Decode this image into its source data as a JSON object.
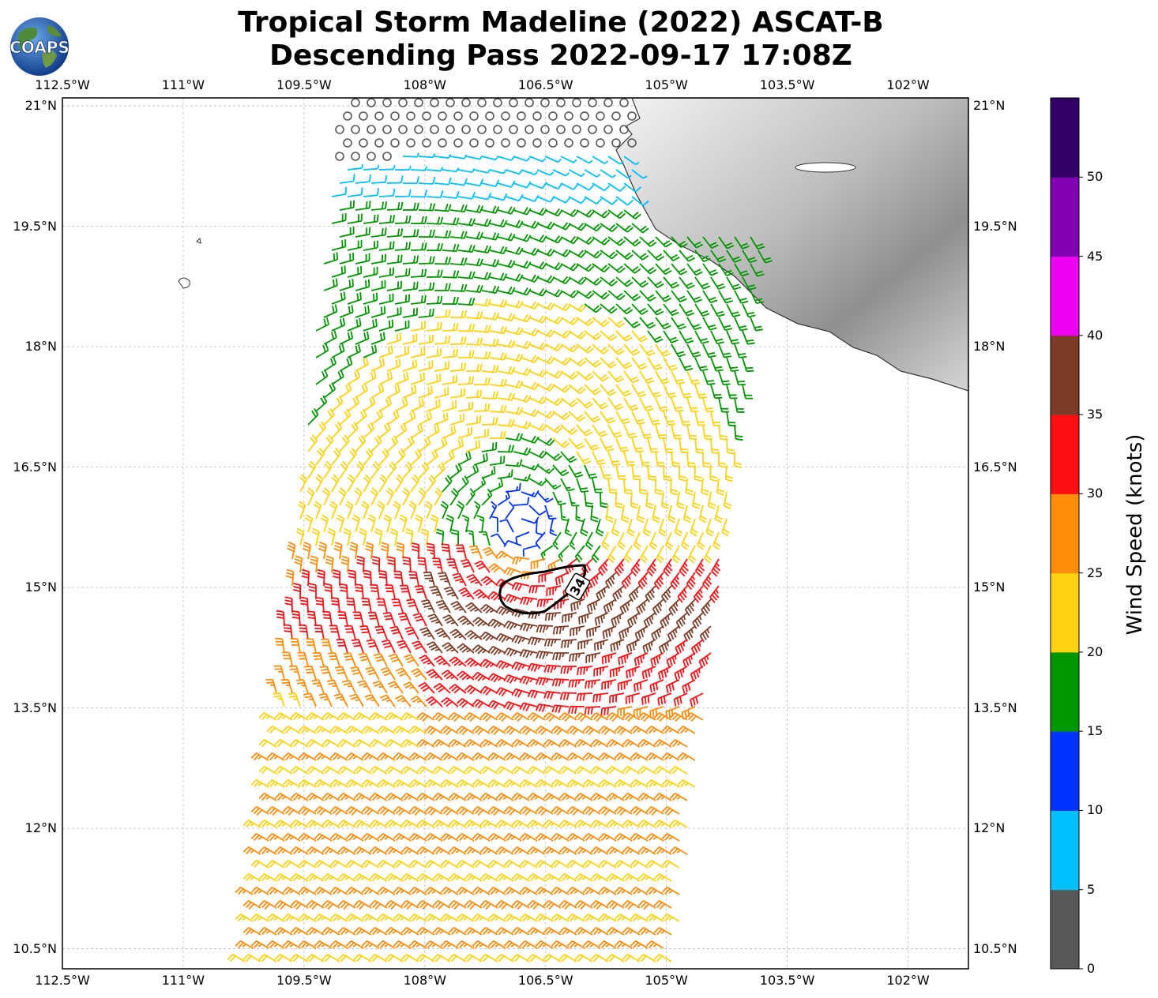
{
  "title": {
    "line1": "Tropical Storm Madeline (2022) ASCAT-B",
    "line2": "Descending Pass 2022-09-17 17:08Z"
  },
  "logo": {
    "text": "COAPS",
    "icon": "globe-logo-icon"
  },
  "map": {
    "lon_range": [
      -112.5,
      -101.25
    ],
    "lat_range": [
      10.25,
      21.1
    ],
    "lon_ticks": [
      "112.5°W",
      "111°W",
      "109.5°W",
      "108°W",
      "106.5°W",
      "105°W",
      "103.5°W",
      "102°W"
    ],
    "lat_ticks": [
      "21°N",
      "19.5°N",
      "18°N",
      "16.5°N",
      "15°N",
      "13.5°N",
      "12°N",
      "10.5°N"
    ],
    "grid": true,
    "land": "Mexico (grayscale terrain, top-right)",
    "contour_label": "34",
    "storm_center_approx": {
      "lon": -106.8,
      "lat": 15.8
    }
  },
  "colorbar": {
    "title": "Wind Speed (knots)",
    "tick_labels": [
      "0",
      "5",
      "10",
      "15",
      "20",
      "25",
      "30",
      "35",
      "40",
      "45",
      "50"
    ],
    "bins": [
      {
        "min": 0,
        "max": 5,
        "color": "#585858"
      },
      {
        "min": 5,
        "max": 10,
        "color": "#00bfff"
      },
      {
        "min": 10,
        "max": 15,
        "color": "#0033ff"
      },
      {
        "min": 15,
        "max": 20,
        "color": "#009600"
      },
      {
        "min": 20,
        "max": 25,
        "color": "#ffd20f"
      },
      {
        "min": 25,
        "max": 30,
        "color": "#ff8c0a"
      },
      {
        "min": 30,
        "max": 35,
        "color": "#ff0f14"
      },
      {
        "min": 35,
        "max": 40,
        "color": "#7d3c28"
      },
      {
        "min": 40,
        "max": 45,
        "color": "#f000f0"
      },
      {
        "min": 45,
        "max": 50,
        "color": "#8200b4"
      },
      {
        "min": 50,
        "max": 55,
        "color": "#320064"
      }
    ]
  }
}
